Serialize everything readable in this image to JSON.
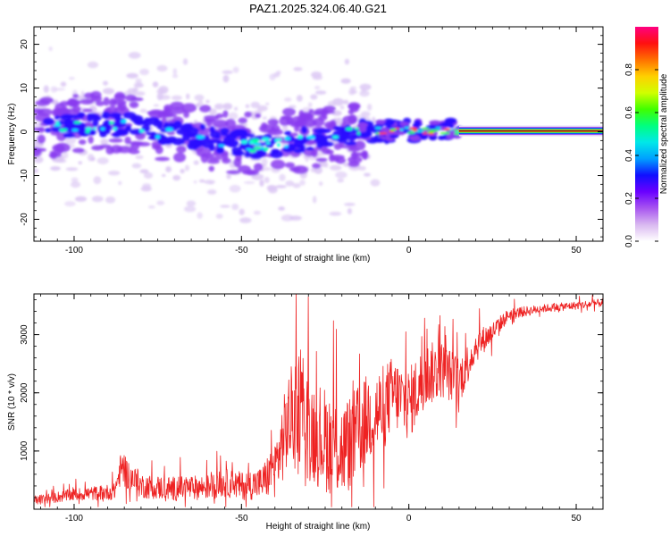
{
  "figure_title": "PAZ1.2025.324.06.40.G21",
  "colors": {
    "snr_line": "#ee2222",
    "colorbar": [
      "#ffffff",
      "#d9b8f0",
      "#a855f0",
      "#6a00ff",
      "#1010ff",
      "#00a0ff",
      "#00e8e8",
      "#00ff80",
      "#40ff00",
      "#d0ff00",
      "#ffd000",
      "#ff7000",
      "#ff1010",
      "#ff0080"
    ],
    "blob_light": "#dcc8f4",
    "blob_mid": "#8a3cf0",
    "blob_core": "#2a10ff"
  },
  "chart_data": [
    {
      "type": "heatmap",
      "title": "PAZ1.2025.324.06.40.G21",
      "xlabel": "Height of straight line (km)",
      "ylabel": "Frequency (Hz)",
      "xlim": [
        -112,
        58
      ],
      "ylim": [
        -25,
        24
      ],
      "xticks": [
        -100,
        -50,
        0,
        50
      ],
      "xtick_labels": [
        "-100",
        "-50",
        "0",
        "50"
      ],
      "yticks": [
        -20,
        -10,
        0,
        10,
        20
      ],
      "ytick_labels": [
        "-20",
        "-10",
        "0",
        "10",
        "20"
      ],
      "colorbar": {
        "label": "Normalized spectral amplitude",
        "range": [
          0,
          1
        ],
        "ticks": [
          0.0,
          0.2,
          0.4,
          0.6,
          0.8
        ],
        "tick_labels": [
          "0.0",
          "0.2",
          "0.4",
          "0.6",
          "0.8"
        ]
      },
      "features": [
        {
          "name": "scattered signal",
          "x_range": [
            -112,
            -10
          ],
          "center_freq_hz": [
            2,
            -4
          ],
          "spread_hz": 14
        },
        {
          "name": "transition",
          "x_range": [
            -10,
            15
          ],
          "center_freq_hz": 0.5
        },
        {
          "name": "coherent line",
          "x_range": [
            15,
            58
          ],
          "center_freq_hz": 0.2,
          "amplitude": 0.95
        }
      ]
    },
    {
      "type": "line",
      "xlabel": "Height of straight line (km)",
      "ylabel": "SNR (10 * v/v)",
      "xlim": [
        -112,
        58
      ],
      "ylim": [
        0,
        3700
      ],
      "xticks": [
        -100,
        -50,
        0,
        50
      ],
      "xtick_labels": [
        "-100",
        "-50",
        "0",
        "50"
      ],
      "yticks": [
        1000,
        2000,
        3000
      ],
      "ytick_labels": [
        "1000",
        "2000",
        "3000"
      ],
      "series": [
        {
          "name": "SNR",
          "x": [
            -112,
            -100,
            -88,
            -86,
            -80,
            -70,
            -60,
            -55,
            -50,
            -44,
            -40,
            -36,
            -33,
            -30,
            -25,
            -20,
            -15,
            -12,
            -8,
            -5,
            0,
            5,
            10,
            15,
            20,
            25,
            30,
            40,
            50,
            58
          ],
          "y": [
            150,
            250,
            300,
            700,
            400,
            350,
            380,
            450,
            400,
            450,
            700,
            1500,
            1800,
            1400,
            1200,
            1000,
            1300,
            1600,
            1700,
            2000,
            1800,
            2300,
            2400,
            2200,
            2800,
            3050,
            3350,
            3450,
            3500,
            3550
          ],
          "noise_amplitude": [
            120,
            150,
            200,
            400,
            300,
            300,
            300,
            350,
            350,
            400,
            700,
            1200,
            1400,
            1300,
            1300,
            1200,
            1200,
            1100,
            1100,
            900,
            900,
            800,
            700,
            600,
            400,
            250,
            150,
            100,
            100,
            100
          ]
        }
      ]
    }
  ]
}
